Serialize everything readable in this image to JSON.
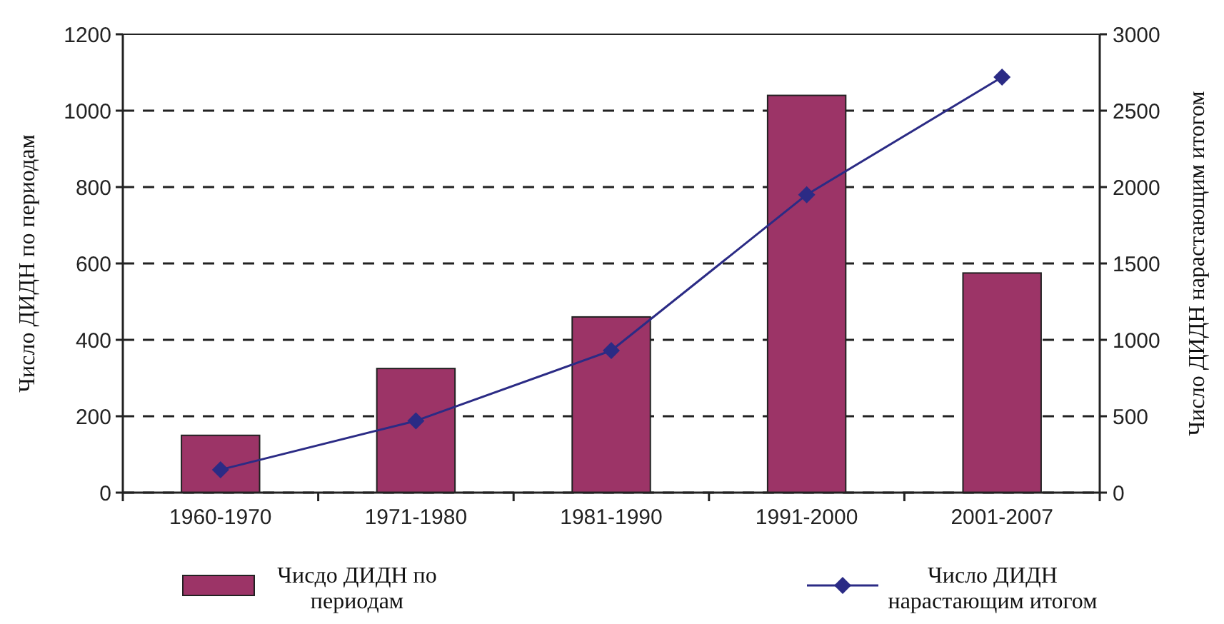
{
  "chart_data": {
    "type": "bar",
    "categories": [
      "1960-1970",
      "1971-1980",
      "1981-1990",
      "1991-2000",
      "2001-2007"
    ],
    "ylabel": "Число ДИДН по периодам",
    "y2label": "Число ДИДН нарастающим итогом",
    "series": [
      {
        "name": "Чисдо ДИДН по периодам",
        "color": "#9c3467",
        "values": [
          150,
          325,
          460,
          1040,
          575
        ]
      },
      {
        "name": "Число ДИДН нарастающим итогом",
        "type": "line",
        "axis": "y2",
        "color": "#2b2b85",
        "marker": "diamond",
        "values": [
          150,
          470,
          930,
          1950,
          2720
        ]
      }
    ],
    "ylim": [
      0,
      1200
    ],
    "yticks": [
      0,
      200,
      400,
      600,
      800,
      1000,
      1200
    ],
    "y2lim": [
      0,
      3000
    ],
    "y2ticks": [
      0,
      500,
      1000,
      1500,
      2000,
      2500,
      3000
    ],
    "grid": "y",
    "legend": "bottom"
  }
}
